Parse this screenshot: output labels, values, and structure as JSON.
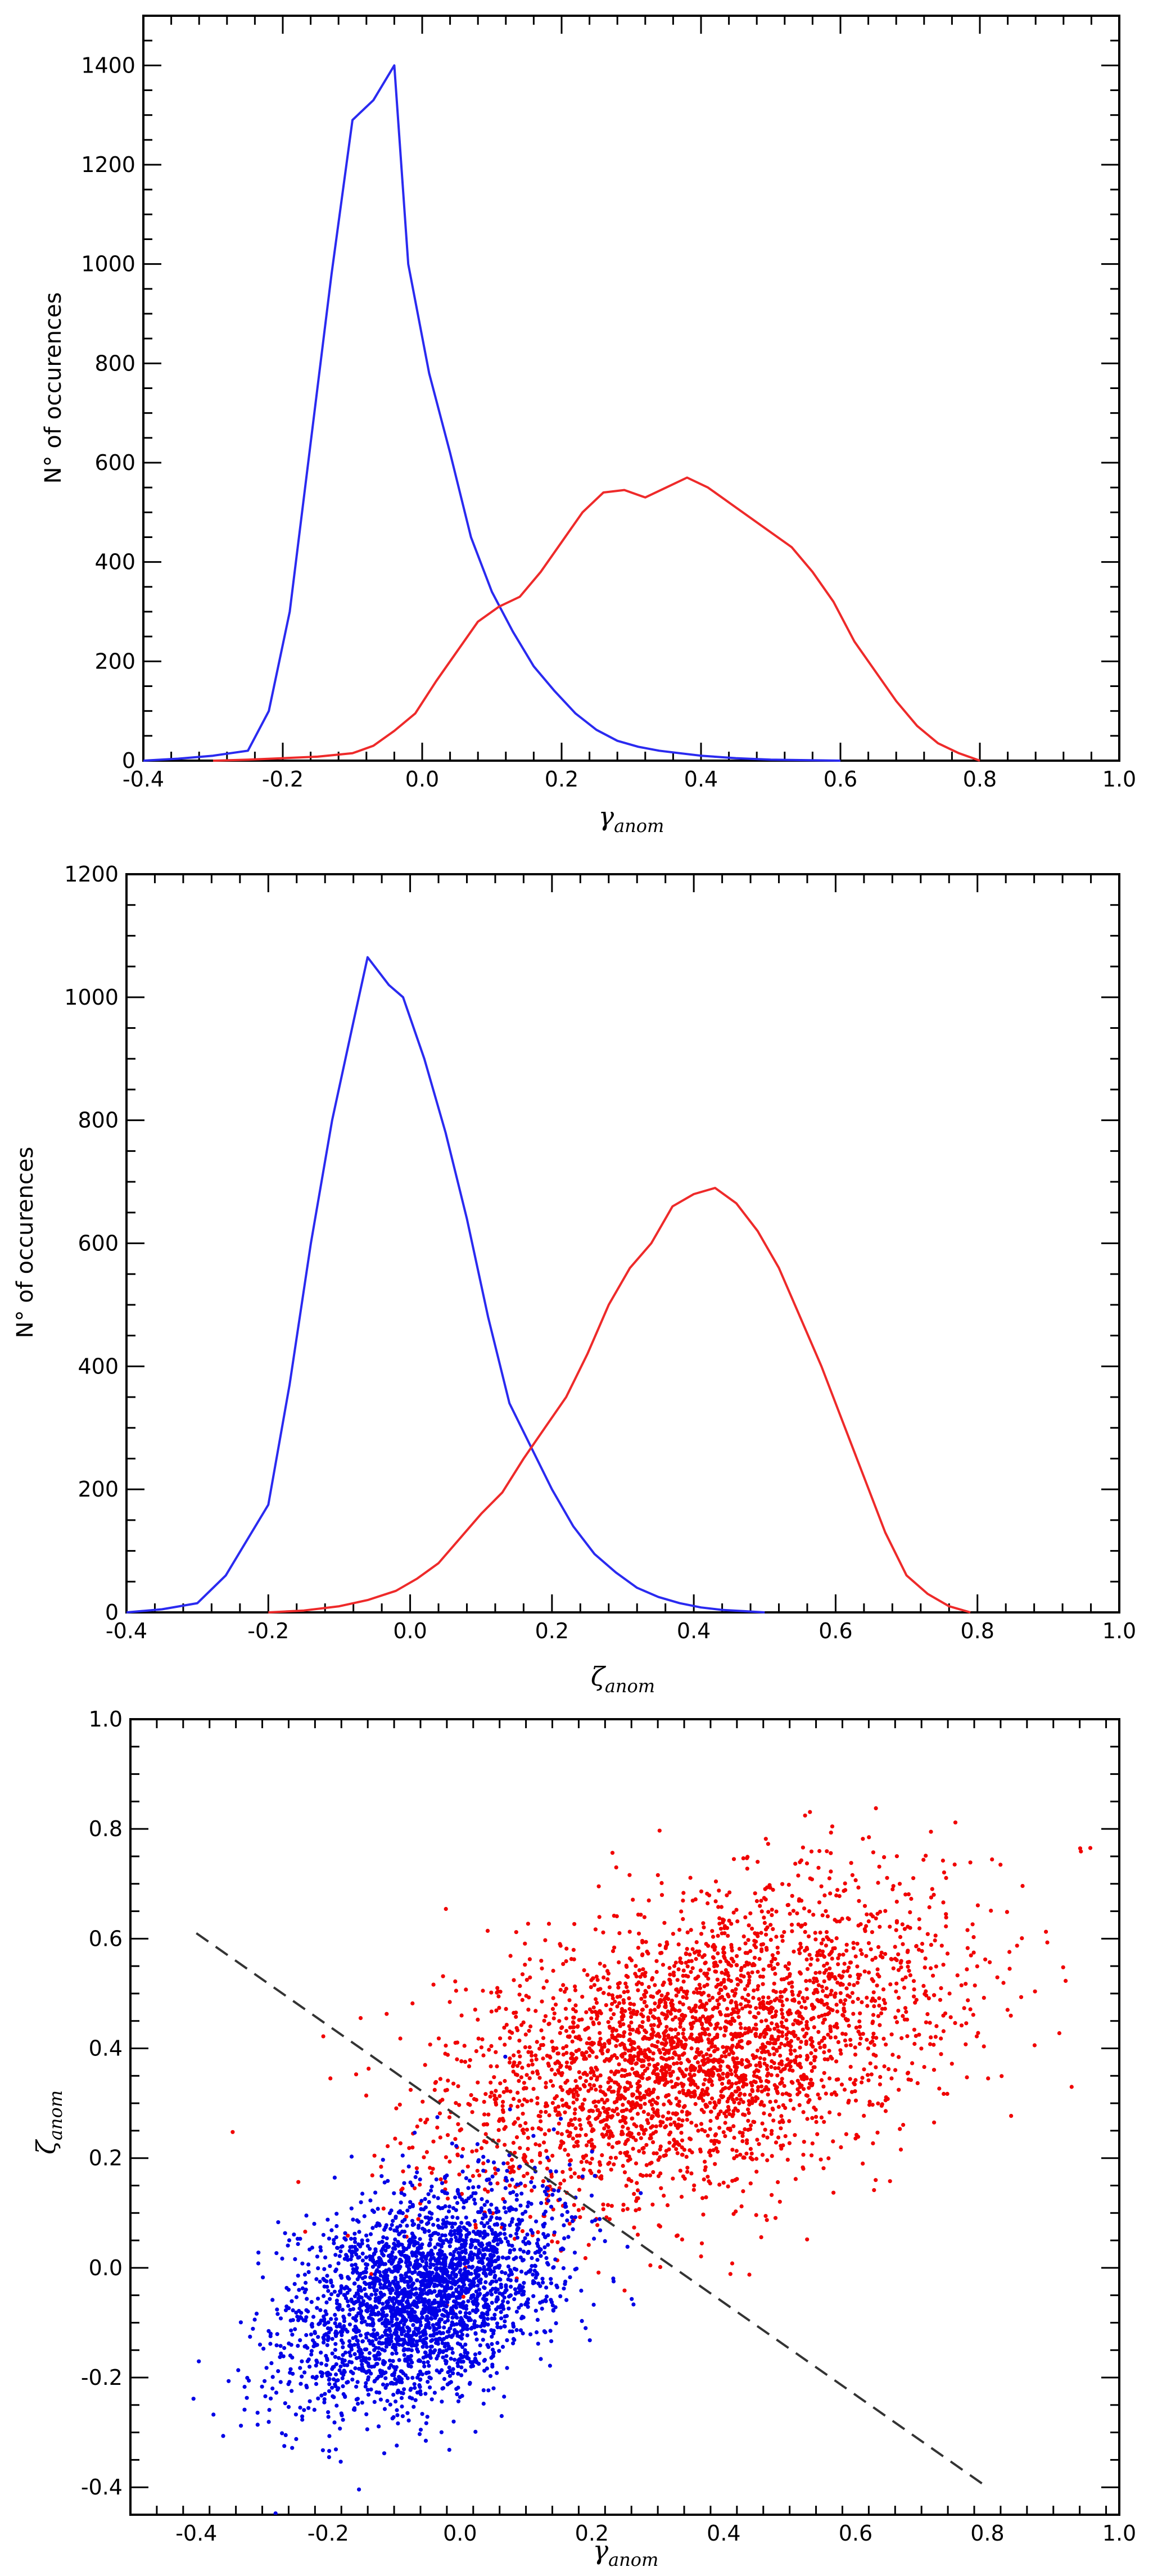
{
  "chart_data": [
    {
      "type": "line",
      "xlabel": "γ",
      "xlabel_sub": "anom",
      "ylabel": "N° of occurences",
      "xlim": [
        -0.4,
        1.0
      ],
      "ylim": [
        0,
        1500
      ],
      "xticks": [
        "-0.4",
        "-0.2",
        "0.0",
        "0.2",
        "0.4",
        "0.6",
        "0.8",
        "1.0"
      ],
      "yticks": [
        "0",
        "200",
        "400",
        "600",
        "800",
        "1000",
        "1200",
        "1400"
      ],
      "series": [
        {
          "color": "#2a2af0",
          "x": [
            -0.4,
            -0.35,
            -0.3,
            -0.25,
            -0.22,
            -0.19,
            -0.16,
            -0.13,
            -0.1,
            -0.07,
            -0.04,
            -0.02,
            0.01,
            0.04,
            0.07,
            0.1,
            0.13,
            0.16,
            0.19,
            0.22,
            0.25,
            0.28,
            0.31,
            0.34,
            0.37,
            0.4,
            0.45,
            0.5,
            0.55,
            0.6
          ],
          "y": [
            0,
            4,
            10,
            20,
            100,
            300,
            640,
            980,
            1290,
            1330,
            1400,
            1000,
            780,
            620,
            450,
            340,
            260,
            190,
            140,
            95,
            62,
            40,
            28,
            20,
            15,
            10,
            5,
            2,
            1,
            0
          ]
        },
        {
          "color": "#ee2a2a",
          "x": [
            -0.3,
            -0.25,
            -0.2,
            -0.15,
            -0.1,
            -0.07,
            -0.04,
            -0.01,
            0.02,
            0.05,
            0.08,
            0.11,
            0.14,
            0.17,
            0.2,
            0.23,
            0.26,
            0.29,
            0.32,
            0.35,
            0.38,
            0.41,
            0.44,
            0.47,
            0.5,
            0.53,
            0.56,
            0.59,
            0.62,
            0.65,
            0.68,
            0.71,
            0.74,
            0.77,
            0.8
          ],
          "y": [
            0,
            2,
            5,
            8,
            15,
            30,
            60,
            95,
            160,
            220,
            280,
            310,
            330,
            380,
            440,
            500,
            540,
            545,
            530,
            550,
            570,
            550,
            520,
            490,
            460,
            430,
            380,
            320,
            240,
            180,
            120,
            70,
            35,
            15,
            0
          ]
        }
      ]
    },
    {
      "type": "line",
      "xlabel": "ζ",
      "xlabel_sub": "anom",
      "ylabel": "N° of occurences",
      "xlim": [
        -0.4,
        1.0
      ],
      "ylim": [
        0,
        1200
      ],
      "xticks": [
        "-0.4",
        "-0.2",
        "0.0",
        "0.2",
        "0.4",
        "0.6",
        "0.8",
        "1.0"
      ],
      "yticks": [
        "0",
        "200",
        "400",
        "600",
        "800",
        "1000",
        "1200"
      ],
      "series": [
        {
          "color": "#2a2af0",
          "x": [
            -0.4,
            -0.35,
            -0.3,
            -0.26,
            -0.2,
            -0.17,
            -0.14,
            -0.11,
            -0.08,
            -0.06,
            -0.03,
            -0.01,
            0.02,
            0.05,
            0.08,
            0.11,
            0.14,
            0.17,
            0.2,
            0.23,
            0.26,
            0.29,
            0.32,
            0.35,
            0.38,
            0.41,
            0.44,
            0.47,
            0.5
          ],
          "y": [
            0,
            5,
            15,
            60,
            175,
            370,
            600,
            800,
            960,
            1065,
            1020,
            1000,
            900,
            780,
            640,
            480,
            340,
            270,
            200,
            140,
            95,
            65,
            40,
            25,
            15,
            8,
            4,
            2,
            0
          ]
        },
        {
          "color": "#ee2a2a",
          "x": [
            -0.2,
            -0.15,
            -0.1,
            -0.06,
            -0.02,
            0.01,
            0.04,
            0.07,
            0.1,
            0.13,
            0.16,
            0.19,
            0.22,
            0.25,
            0.28,
            0.31,
            0.34,
            0.37,
            0.4,
            0.43,
            0.46,
            0.49,
            0.52,
            0.55,
            0.58,
            0.61,
            0.64,
            0.67,
            0.7,
            0.73,
            0.76,
            0.79
          ],
          "y": [
            0,
            3,
            10,
            20,
            35,
            55,
            80,
            120,
            160,
            195,
            250,
            300,
            350,
            420,
            500,
            560,
            600,
            660,
            680,
            690,
            665,
            620,
            560,
            480,
            400,
            310,
            220,
            130,
            60,
            30,
            10,
            0
          ]
        }
      ]
    },
    {
      "type": "scatter",
      "xlabel": "γ",
      "xlabel_sub": "anom",
      "ylabel": "ζ",
      "ylabel_sub": "anom",
      "xlim": [
        -0.5,
        1.0
      ],
      "ylim": [
        -0.45,
        1.0
      ],
      "xticks": [
        "-0.4",
        "-0.2",
        "0.0",
        "0.2",
        "0.4",
        "0.6",
        "0.8",
        "1.0"
      ],
      "yticks": [
        "-0.4",
        "-0.2",
        "0.0",
        "0.2",
        "0.4",
        "0.6",
        "0.8",
        "1.0"
      ],
      "series": [
        {
          "color": "#f00000",
          "center": [
            0.36,
            0.4
          ],
          "spread": [
            0.19,
            0.14
          ],
          "correlation": 0.42,
          "count": 3300
        },
        {
          "color": "#0000e6",
          "center": [
            -0.06,
            -0.05
          ],
          "spread": [
            0.1,
            0.1
          ],
          "correlation": 0.38,
          "count": 2800
        }
      ],
      "reference_line": {
        "x": [
          -0.4,
          0.8
        ],
        "y": [
          0.61,
          -0.4
        ],
        "style": "dashed",
        "color": "#333333"
      }
    }
  ]
}
